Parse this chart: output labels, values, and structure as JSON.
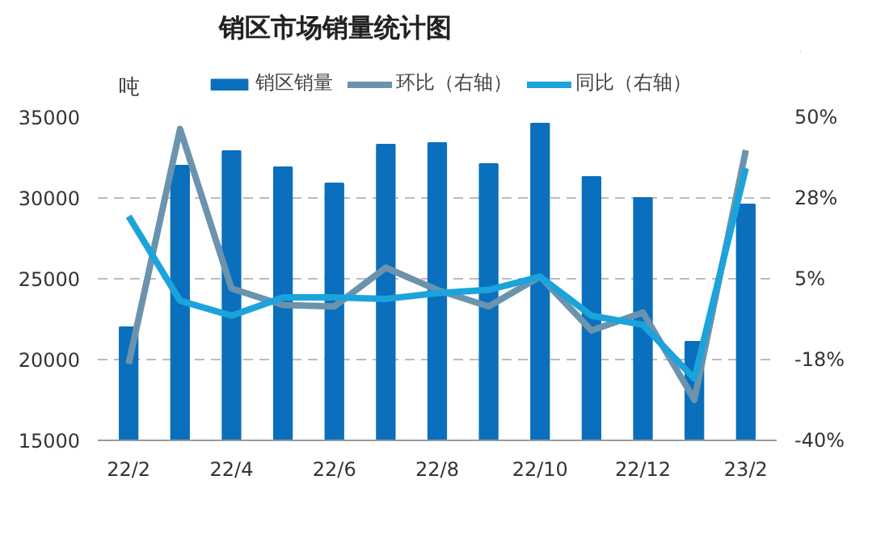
{
  "chart_data": {
    "type": "bar",
    "title": "销区市场销量统计图",
    "ylabel": "吨",
    "categories": [
      "22/2",
      null,
      "22/4",
      null,
      "22/6",
      null,
      "22/8",
      null,
      "22/10",
      null,
      "22/12",
      null,
      "23/2"
    ],
    "series": [
      {
        "name": "销区销量",
        "color": "#0a6fbd",
        "values": [
          22000,
          32000,
          32900,
          31900,
          30900,
          33300,
          33400,
          32100,
          34600,
          31300,
          30000,
          21100,
          29600
        ]
      },
      {
        "name": "环比（右轴）",
        "type": "line",
        "axis": "y2",
        "color": "#6b93ad",
        "values": [
          -18.7,
          46.7,
          2.3,
          -2.3,
          -2.7,
          8.1,
          1.9,
          -2.7,
          5.6,
          -9.4,
          -4.4,
          -28.7,
          40.8
        ]
      },
      {
        "name": "同比（右轴）",
        "type": "line",
        "axis": "y2",
        "color": "#1ba3dc",
        "values": [
          22.4,
          -1.1,
          -5.3,
          -0.2,
          -0.2,
          -0.6,
          1.0,
          1.9,
          5.6,
          -5.3,
          -7.8,
          -22.8,
          35.8
        ]
      }
    ],
    "ylim": [
      15000,
      35000
    ],
    "yticks": [
      15000,
      20000,
      25000,
      30000,
      35000
    ],
    "y2lim": [
      -40,
      50
    ],
    "y2ticks": [
      {
        "value": -40,
        "label": "-40%"
      },
      {
        "value": -17.5,
        "label": "-18%"
      },
      {
        "value": 5,
        "label": "5%"
      },
      {
        "value": 27.5,
        "label": "28%"
      },
      {
        "value": 50,
        "label": "50%"
      }
    ],
    "grid": "y",
    "legend": "top",
    "marker": "none",
    "line_style": "solid"
  }
}
